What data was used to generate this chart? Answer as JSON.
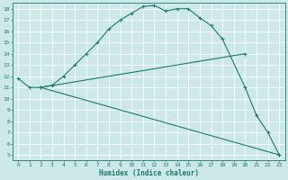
{
  "xlabel": "Humidex (Indice chaleur)",
  "bg_color": "#cce8e8",
  "line_color": "#1a7a6e",
  "grid_color": "#ffffff",
  "xlim": [
    -0.5,
    23.5
  ],
  "ylim": [
    4.5,
    18.5
  ],
  "yticks": [
    5,
    6,
    7,
    8,
    9,
    10,
    11,
    12,
    13,
    14,
    15,
    16,
    17,
    18
  ],
  "xticks": [
    0,
    1,
    2,
    3,
    4,
    5,
    6,
    7,
    8,
    9,
    10,
    11,
    12,
    13,
    14,
    15,
    16,
    17,
    18,
    19,
    20,
    21,
    22,
    23
  ],
  "curve1_x": [
    0,
    1,
    2,
    3,
    4,
    5,
    6,
    7,
    8,
    9,
    10,
    11,
    12,
    13,
    14,
    15,
    16,
    17,
    18,
    20,
    21,
    22,
    23
  ],
  "curve1_y": [
    11.8,
    11.0,
    11.0,
    11.2,
    12.0,
    13.0,
    14.0,
    15.0,
    16.2,
    17.0,
    17.6,
    18.2,
    18.3,
    17.8,
    18.0,
    18.0,
    17.2,
    16.5,
    15.3,
    11.0,
    8.5,
    7.0,
    5.0
  ],
  "curve2_x": [
    2,
    20
  ],
  "curve2_y": [
    11.0,
    14.0
  ],
  "curve3_x": [
    2,
    23
  ],
  "curve3_y": [
    11.0,
    5.0
  ],
  "marker": "+",
  "markersize": 3,
  "linewidth": 0.8,
  "tick_fontsize": 4.5,
  "xlabel_fontsize": 5.5
}
